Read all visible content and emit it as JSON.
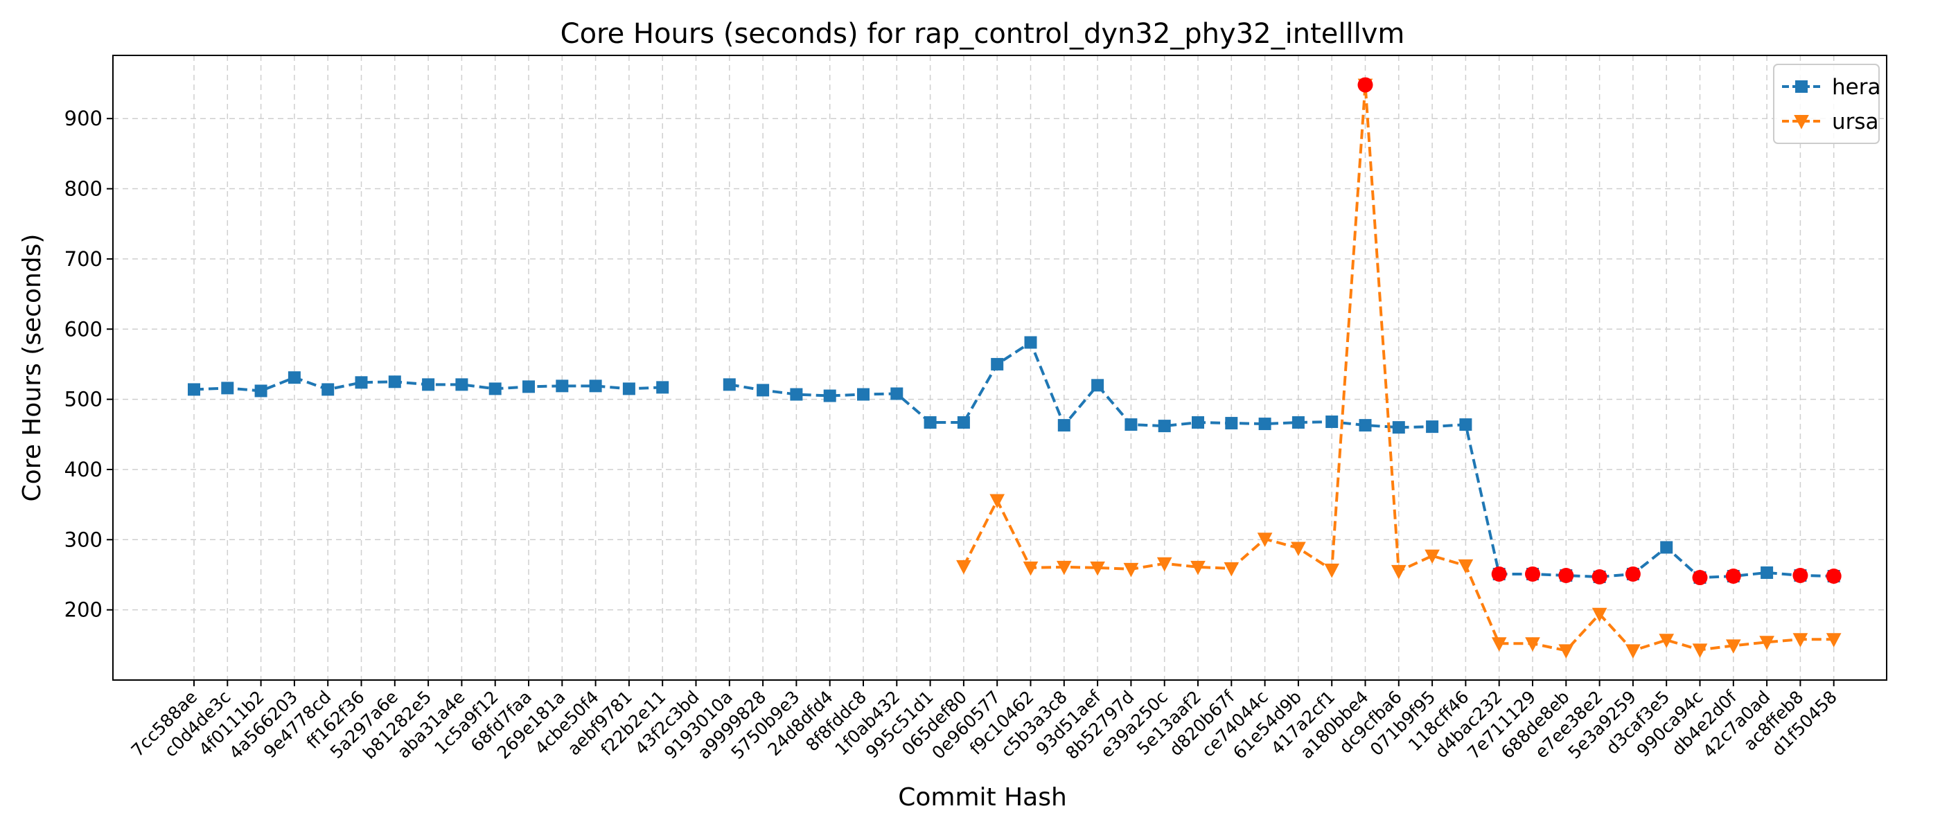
{
  "chart_data": {
    "type": "line",
    "title": "Core Hours (seconds) for rap_control_dyn32_phy32_intelllvm",
    "xlabel": "Commit Hash",
    "ylabel": "Core Hours (seconds)",
    "ylim": [
      100,
      990
    ],
    "yticks": [
      200,
      300,
      400,
      500,
      600,
      700,
      800,
      900
    ],
    "grid": true,
    "legend_position": "top-right",
    "categories": [
      "7cc588ae",
      "c0d4de3c",
      "4f0111b2",
      "4a566203",
      "9e4778cd",
      "ff162f36",
      "5a297a6e",
      "b81282e5",
      "aba31a4e",
      "1c5a9f12",
      "68fd7faa",
      "269e181a",
      "4cbe50f4",
      "aebf9781",
      "f22b2e11",
      "43f2c3bd",
      "9193010a",
      "a9999828",
      "5750b9e3",
      "24d8dfd4",
      "8f8fddc8",
      "1f0ab432",
      "995c51d1",
      "065def80",
      "0e960577",
      "f9c10462",
      "c5b3a3c8",
      "93d51aef",
      "8b52797d",
      "e39a250c",
      "5e13aaf2",
      "d820b67f",
      "ce74044c",
      "61e54d9b",
      "417a2cf1",
      "a180bbe4",
      "dc9cfba6",
      "071b9f95",
      "118cff46",
      "d4bac232",
      "7e711129",
      "688de8eb",
      "e7ee38e2",
      "5e3a9259",
      "d3caf3e5",
      "990ca94c",
      "db4e2d0f",
      "42c7a0ad",
      "ac8ffeb8",
      "d1f50458"
    ],
    "series": [
      {
        "name": "hera",
        "color": "#1f77b4",
        "marker": "square",
        "values": [
          514,
          516,
          512,
          531,
          514,
          524,
          525,
          521,
          521,
          515,
          518,
          519,
          519,
          515,
          517,
          null,
          521,
          513,
          507,
          505,
          507,
          508,
          467,
          467,
          550,
          581,
          463,
          520,
          464,
          462,
          467,
          466,
          465,
          467,
          468,
          463,
          460,
          461,
          464,
          251,
          251,
          249,
          247,
          251,
          289,
          246,
          248,
          253,
          249,
          248
        ]
      },
      {
        "name": "ursa",
        "color": "#ff7f0e",
        "marker": "triangle-down",
        "values": [
          null,
          null,
          null,
          null,
          null,
          null,
          null,
          null,
          null,
          null,
          null,
          null,
          null,
          null,
          null,
          null,
          null,
          null,
          null,
          null,
          null,
          null,
          null,
          262,
          356,
          260,
          261,
          260,
          258,
          266,
          261,
          259,
          301,
          288,
          257,
          948,
          255,
          277,
          263,
          152,
          152,
          142,
          194,
          142,
          157,
          143,
          149,
          154,
          158,
          158
        ]
      }
    ],
    "highlights": [
      {
        "series": "ursa",
        "index": 35,
        "color": "#ff0000"
      },
      {
        "series": "hera",
        "index": 39,
        "color": "#ff0000"
      },
      {
        "series": "hera",
        "index": 40,
        "color": "#ff0000"
      },
      {
        "series": "hera",
        "index": 41,
        "color": "#ff0000"
      },
      {
        "series": "hera",
        "index": 42,
        "color": "#ff0000"
      },
      {
        "series": "hera",
        "index": 43,
        "color": "#ff0000"
      },
      {
        "series": "hera",
        "index": 45,
        "color": "#ff0000"
      },
      {
        "series": "hera",
        "index": 46,
        "color": "#ff0000"
      },
      {
        "series": "hera",
        "index": 48,
        "color": "#ff0000"
      },
      {
        "series": "hera",
        "index": 49,
        "color": "#ff0000"
      }
    ]
  }
}
